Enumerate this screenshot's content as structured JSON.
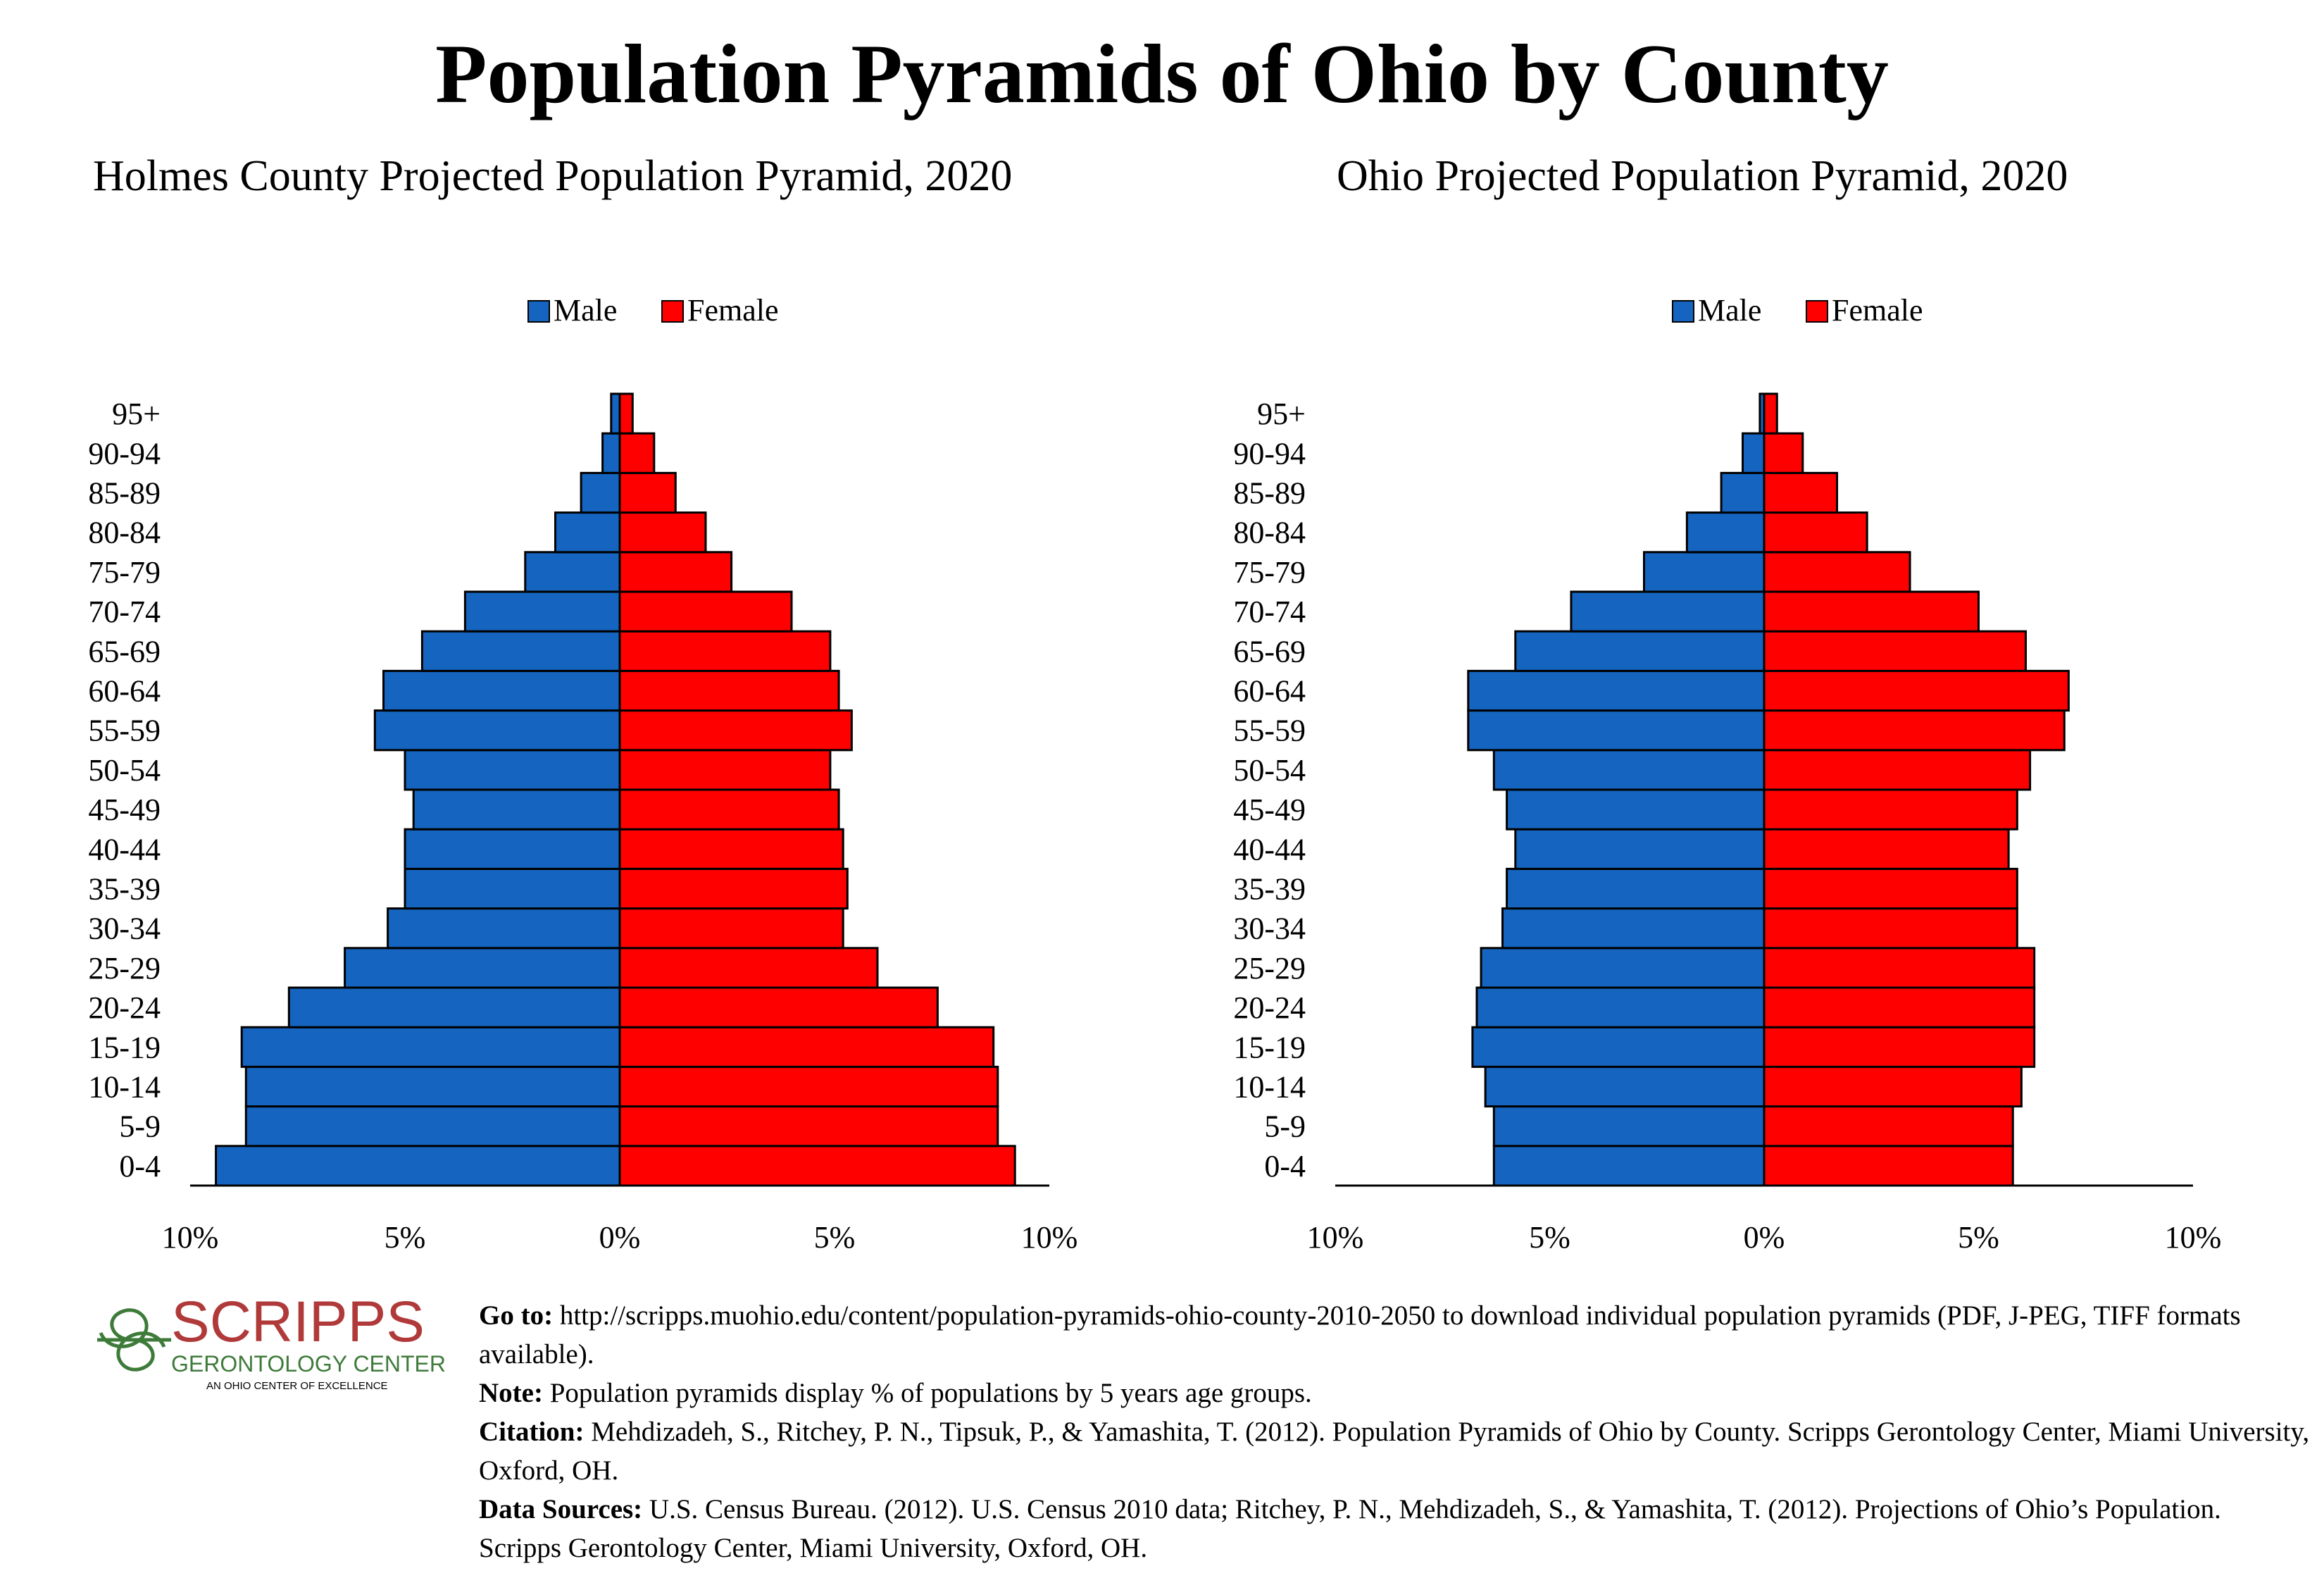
{
  "main_title": "Population Pyramids of Ohio by County",
  "colors": {
    "male": "#1565C0",
    "female": "#FF0000",
    "axis": "#000000",
    "logo_red": "#B03A3A",
    "logo_green": "#3E7B3A"
  },
  "chart_data": [
    {
      "type": "bar",
      "title": "Holmes County Projected Population Pyramid, 2020",
      "orientation": "horizontal-pyramid",
      "categories": [
        "0-4",
        "5-9",
        "10-14",
        "15-19",
        "20-24",
        "25-29",
        "30-34",
        "35-39",
        "40-44",
        "45-49",
        "50-54",
        "55-59",
        "60-64",
        "65-69",
        "70-74",
        "75-79",
        "80-84",
        "85-89",
        "90-94",
        "95+"
      ],
      "series": [
        {
          "name": "Male",
          "values": [
            9.4,
            8.7,
            8.7,
            8.8,
            7.7,
            6.4,
            5.4,
            5.0,
            5.0,
            4.8,
            5.0,
            5.7,
            5.5,
            4.6,
            3.6,
            2.2,
            1.5,
            0.9,
            0.4,
            0.2
          ]
        },
        {
          "name": "Female",
          "values": [
            9.2,
            8.8,
            8.8,
            8.7,
            7.4,
            6.0,
            5.2,
            5.3,
            5.2,
            5.1,
            4.9,
            5.4,
            5.1,
            4.9,
            4.0,
            2.6,
            2.0,
            1.3,
            0.8,
            0.3
          ]
        }
      ],
      "legend": [
        "Male",
        "Female"
      ],
      "legend_position": "top",
      "xlim": [
        -10,
        10
      ],
      "xticks": [
        "10%",
        "5%",
        "0%",
        "5%",
        "10%"
      ],
      "xlabel": "",
      "ylabel": ""
    },
    {
      "type": "bar",
      "title": "Ohio Projected Population Pyramid, 2020",
      "orientation": "horizontal-pyramid",
      "categories": [
        "0-4",
        "5-9",
        "10-14",
        "15-19",
        "20-24",
        "25-29",
        "30-34",
        "35-39",
        "40-44",
        "45-49",
        "50-54",
        "55-59",
        "60-64",
        "65-69",
        "70-74",
        "75-79",
        "80-84",
        "85-89",
        "90-94",
        "95+"
      ],
      "series": [
        {
          "name": "Male",
          "values": [
            6.3,
            6.3,
            6.5,
            6.8,
            6.7,
            6.6,
            6.1,
            6.0,
            5.8,
            6.0,
            6.3,
            6.9,
            6.9,
            5.8,
            4.5,
            2.8,
            1.8,
            1.0,
            0.5,
            0.1
          ]
        },
        {
          "name": "Female",
          "values": [
            5.8,
            5.8,
            6.0,
            6.3,
            6.3,
            6.3,
            5.9,
            5.9,
            5.7,
            5.9,
            6.2,
            7.0,
            7.1,
            6.1,
            5.0,
            3.4,
            2.4,
            1.7,
            0.9,
            0.3
          ]
        }
      ],
      "legend": [
        "Male",
        "Female"
      ],
      "legend_position": "top",
      "xlim": [
        -10,
        10
      ],
      "xticks": [
        "10%",
        "5%",
        "0%",
        "5%",
        "10%"
      ],
      "xlabel": "",
      "ylabel": ""
    }
  ],
  "logo": {
    "name": "SCRIPPS",
    "line2": "GERONTOLOGY CENTER",
    "line3": "AN OHIO CENTER OF EXCELLENCE"
  },
  "notes": {
    "goto_label": "Go to:",
    "goto_text": " http://scripps.muohio.edu/content/population-pyramids-ohio-county-2010-2050 to download individual population pyramids (PDF, J-PEG, TIFF formats available).",
    "note_label": "Note:",
    "note_text": " Population pyramids display % of populations by 5 years age groups.",
    "citation_label": "Citation:",
    "citation_text": " Mehdizadeh, S., Ritchey, P. N., Tipsuk, P., & Yamashita, T. (2012). Population Pyramids of Ohio by County. Scripps Gerontology Center, Miami University, Oxford, OH.",
    "sources_label": "Data Sources:",
    "sources_text": " U.S. Census Bureau. (2012). U.S. Census 2010 data; Ritchey, P. N., Mehdizadeh, S., & Yamashita, T. (2012). Projections of Ohio’s Population. Scripps Gerontology Center, Miami University, Oxford, OH."
  }
}
